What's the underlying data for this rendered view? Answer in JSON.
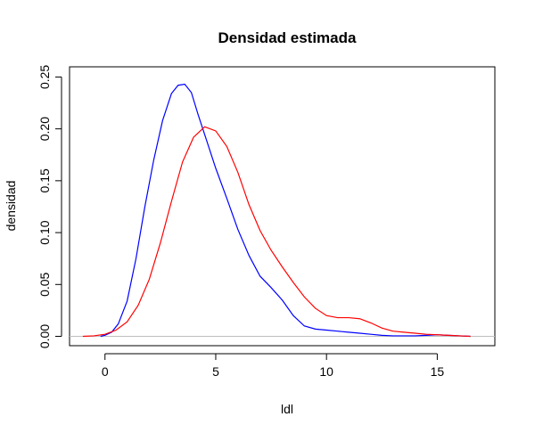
{
  "chart_data": {
    "type": "line",
    "title": "Densidad estimada",
    "xlabel": "ldl",
    "ylabel": "densidad",
    "xlim": [
      -1.6,
      17.6
    ],
    "ylim": [
      -0.009,
      0.2598
    ],
    "x_ticks": [
      0,
      5,
      10,
      15
    ],
    "y_ticks": [
      0.0,
      0.05,
      0.1,
      0.15,
      0.2,
      0.25
    ],
    "x_tick_labels": [
      "0",
      "5",
      "10",
      "15"
    ],
    "y_tick_labels": [
      "0.00",
      "0.05",
      "0.10",
      "0.15",
      "0.20",
      "0.25"
    ],
    "grid": false,
    "reference_line": {
      "y": 0,
      "color": "#bebebe"
    },
    "series": [
      {
        "color": "#0000ff",
        "x": [
          -0.2,
          0,
          0.3,
          0.6,
          1.0,
          1.4,
          1.8,
          2.2,
          2.6,
          3.0,
          3.3,
          3.6,
          3.9,
          4.2,
          4.6,
          5.0,
          5.5,
          6.0,
          6.5,
          7.0,
          7.5,
          8.0,
          8.5,
          9.0,
          9.5,
          10.0,
          10.5,
          11.0,
          11.5,
          12.0,
          12.5,
          13.0,
          13.5,
          14.0,
          14.5,
          15.0,
          15.5,
          16.0,
          16.5
        ],
        "y": [
          0.0,
          0.001,
          0.004,
          0.012,
          0.034,
          0.075,
          0.125,
          0.17,
          0.208,
          0.234,
          0.242,
          0.243,
          0.235,
          0.214,
          0.188,
          0.162,
          0.133,
          0.103,
          0.078,
          0.058,
          0.047,
          0.035,
          0.02,
          0.01,
          0.007,
          0.006,
          0.005,
          0.004,
          0.003,
          0.002,
          0.001,
          0.0005,
          0.0005,
          0.0005,
          0.001,
          0.0015,
          0.001,
          0.0005,
          0.0
        ]
      },
      {
        "color": "#ff0000",
        "x": [
          -1.0,
          -0.5,
          0,
          0.5,
          1.0,
          1.5,
          2.0,
          2.5,
          3.0,
          3.5,
          4.0,
          4.5,
          5.0,
          5.5,
          6.0,
          6.5,
          7.0,
          7.5,
          8.0,
          8.5,
          9.0,
          9.5,
          10.0,
          10.5,
          11.0,
          11.5,
          12.0,
          12.5,
          13.0,
          13.5,
          14.0,
          14.5,
          15.0,
          15.5,
          16.0,
          16.5
        ],
        "y": [
          0.0,
          0.0005,
          0.002,
          0.006,
          0.014,
          0.03,
          0.055,
          0.09,
          0.13,
          0.168,
          0.192,
          0.202,
          0.198,
          0.183,
          0.158,
          0.127,
          0.102,
          0.083,
          0.067,
          0.052,
          0.038,
          0.027,
          0.02,
          0.018,
          0.018,
          0.017,
          0.013,
          0.008,
          0.005,
          0.004,
          0.003,
          0.002,
          0.0015,
          0.001,
          0.0005,
          0.0
        ]
      }
    ]
  }
}
